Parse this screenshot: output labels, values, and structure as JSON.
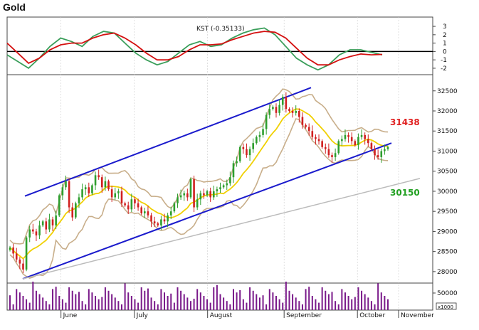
{
  "window": {
    "title": "Gold"
  },
  "chart_data": {
    "type": "candlestick",
    "title": "Gold",
    "months": [
      "June",
      "July",
      "August",
      "September",
      "October",
      "November"
    ],
    "price_axis": {
      "ticks": [
        28000,
        28500,
        29000,
        29500,
        30000,
        30500,
        31000,
        31500,
        32000,
        32500
      ],
      "ylim": [
        27750,
        32850
      ]
    },
    "kst_axis": {
      "ticks": [
        3,
        2,
        1,
        0,
        -1,
        -2
      ],
      "ylim": [
        -2.6,
        3.6
      ]
    },
    "volume_axis": {
      "ticks": [
        50000
      ],
      "multiplier_label": "x1000"
    },
    "kst_label": "KST (-0.35133)",
    "annotations": [
      {
        "text": "31438",
        "color": "#e02020"
      },
      {
        "text": "30150",
        "color": "#22a022"
      }
    ],
    "kst_series": [
      -0.4,
      -1.2,
      -2.0,
      -0.8,
      0.6,
      1.6,
      1.2,
      0.6,
      1.8,
      2.4,
      2.2,
      1.0,
      -0.2,
      -1.0,
      -1.6,
      -1.2,
      -0.2,
      0.8,
      1.2,
      0.6,
      0.8,
      1.6,
      2.2,
      2.6,
      2.8,
      2.0,
      0.6,
      -0.8,
      -1.6,
      -2.2,
      -1.6,
      -0.4,
      0.2,
      0.2,
      -0.1,
      -0.4
    ],
    "kst_signal": [
      1.0,
      -0.2,
      -1.4,
      -0.8,
      0.2,
      0.8,
      1.0,
      1.0,
      1.6,
      2.0,
      2.2,
      1.6,
      0.8,
      -0.2,
      -1.0,
      -1.0,
      -0.6,
      0.2,
      0.8,
      0.8,
      0.9,
      1.4,
      1.8,
      2.2,
      2.4,
      2.3,
      1.6,
      0.4,
      -0.8,
      -1.6,
      -1.6,
      -1.0,
      -0.6,
      -0.3,
      -0.4,
      -0.35
    ],
    "closes": [
      28600,
      28450,
      28300,
      28200,
      28050,
      28850,
      29050,
      29000,
      28900,
      29150,
      29250,
      29050,
      29300,
      29150,
      29400,
      29900,
      30100,
      30250,
      29600,
      29350,
      29700,
      29850,
      30050,
      30100,
      29950,
      30150,
      30400,
      30350,
      30100,
      30250,
      30050,
      29850,
      29950,
      30000,
      29700,
      29650,
      29550,
      29800,
      29700,
      29600,
      29450,
      29500,
      29400,
      29250,
      29200,
      29150,
      29300,
      29250,
      29400,
      29500,
      29700,
      29850,
      29900,
      29950,
      29850,
      30300,
      29600,
      29800,
      29950,
      29900,
      30000,
      29850,
      30000,
      30050,
      30100,
      30150,
      30200,
      30350,
      30700,
      30750,
      31100,
      31050,
      30900,
      31050,
      31200,
      31350,
      31400,
      31550,
      31900,
      32050,
      32100,
      31950,
      32150,
      32350,
      32050,
      32000,
      31950,
      32000,
      31850,
      31650,
      31600,
      31500,
      31350,
      31300,
      31250,
      31100,
      31050,
      30900,
      30850,
      30950,
      31250,
      31300,
      31400,
      31350,
      31250,
      31150,
      31350,
      31400,
      31300,
      31200,
      31050,
      30900,
      30850,
      31000,
      31050,
      31100
    ],
    "lower_channel": [
      27820,
      31200
    ],
    "upper_channel": [
      29880,
      32580
    ],
    "support_line": [
      27820,
      30320
    ]
  }
}
